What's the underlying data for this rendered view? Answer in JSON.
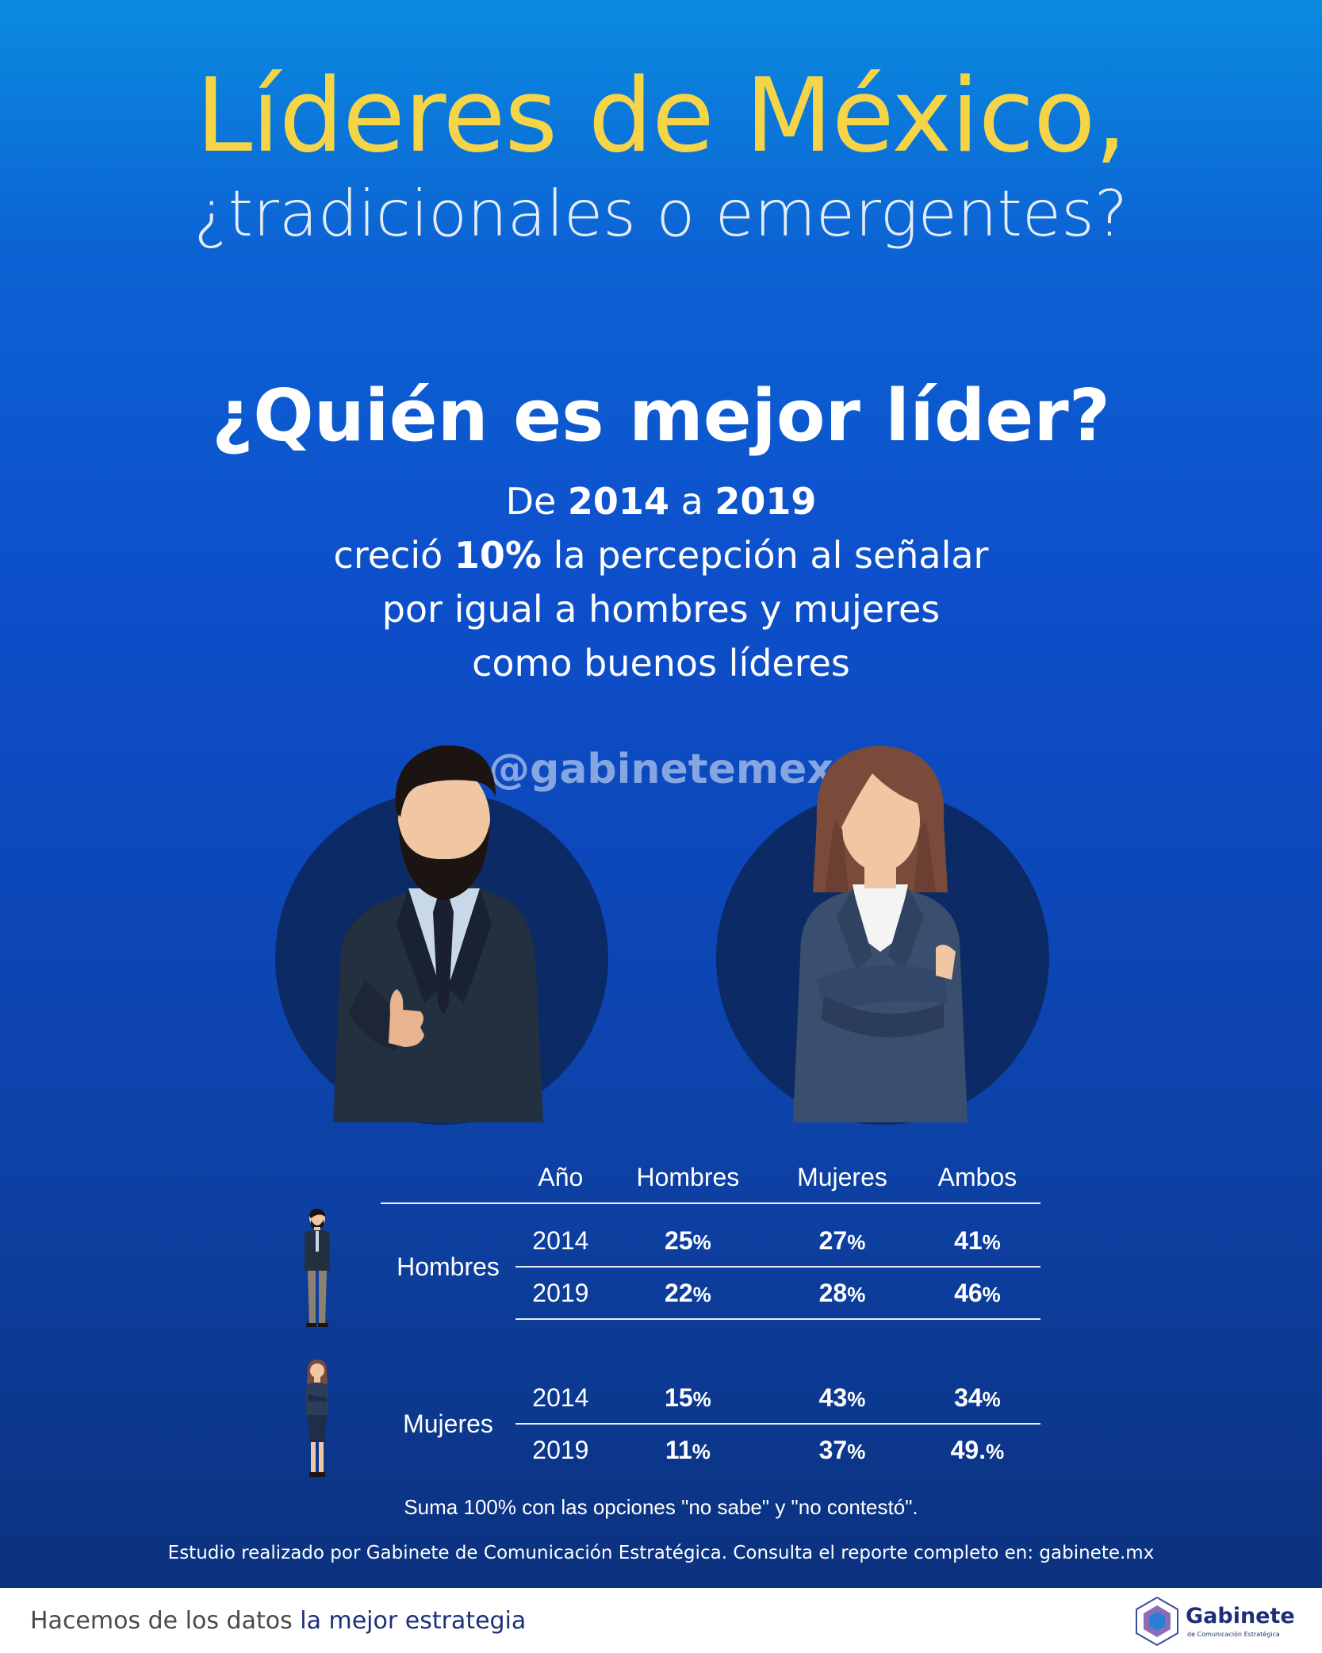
{
  "header": {
    "title": "Líderes de México,",
    "subtitle": "¿tradicionales o emergentes?"
  },
  "section": {
    "question": "¿Quién es mejor líder?",
    "lead_line1_a": "De ",
    "lead_line1_b": "2014",
    "lead_line1_c": " a ",
    "lead_line1_d": "2019",
    "lead_line2_a": "creció ",
    "lead_line2_b": "10%",
    "lead_line2_c": " la percepción al señalar",
    "lead_line3": "por igual a hombres y mujeres",
    "lead_line4": "como buenos líderes"
  },
  "watermark": "@gabinetemex",
  "table": {
    "headers": [
      "Año",
      "Hombres",
      "Mujeres",
      "Ambos"
    ],
    "groups": [
      {
        "label": "Hombres",
        "rows": [
          {
            "year": "2014",
            "hombres": "25",
            "mujeres": "27",
            "ambos": "41"
          },
          {
            "year": "2019",
            "hombres": "22",
            "mujeres": "28",
            "ambos": "46"
          }
        ]
      },
      {
        "label": "Mujeres",
        "rows": [
          {
            "year": "2014",
            "hombres": "15",
            "mujeres": "43",
            "ambos": "34"
          },
          {
            "year": "2019",
            "hombres": "11",
            "mujeres": "37",
            "ambos": "49."
          }
        ]
      }
    ],
    "pct": "%"
  },
  "note": "Suma 100% con las opciones \"no sabe\" y \"no contestó\".",
  "study": "Estudio realizado por Gabinete de Comunicación Estratégica. Consulta el reporte completo en: gabinete.mx",
  "footer": {
    "tagline_a": "Hacemos de los datos ",
    "tagline_b": "la mejor estrategia",
    "logo_name": "Gabinete",
    "logo_sub": "de Comunicación Estratégica"
  },
  "colors": {
    "title": "#f5d547",
    "background_top": "#0a8be0",
    "background_bottom": "#0b2f78",
    "circle": "#0b2a66",
    "brand": "#1d2f7a"
  },
  "icons": [
    "man-leader-illustration",
    "woman-leader-illustration",
    "man-small-icon",
    "woman-small-icon",
    "gabinete-logo-icon"
  ]
}
